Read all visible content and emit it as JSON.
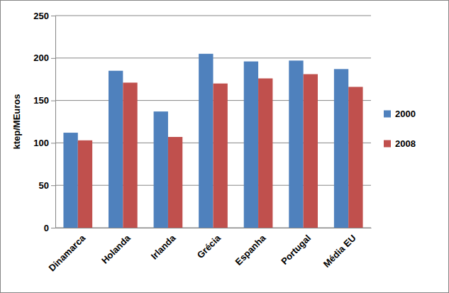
{
  "chart_data": {
    "type": "bar",
    "y_label": "ktep/MEuros",
    "categories": [
      "Dinamarca",
      "Holanda",
      "Irlanda",
      "Grécia",
      "Espanha",
      "Portugal",
      "Média EU"
    ],
    "series": [
      {
        "name": "2000",
        "color": "#4f81bd",
        "values": [
          112,
          185,
          137,
          205,
          196,
          197,
          187
        ]
      },
      {
        "name": "2008",
        "color": "#c0504d",
        "values": [
          103,
          171,
          107,
          170,
          176,
          181,
          166
        ]
      }
    ],
    "ylim": [
      0,
      250
    ],
    "yticks": [
      0,
      50,
      100,
      150,
      200,
      250
    ],
    "grid": true,
    "legend": "right"
  }
}
